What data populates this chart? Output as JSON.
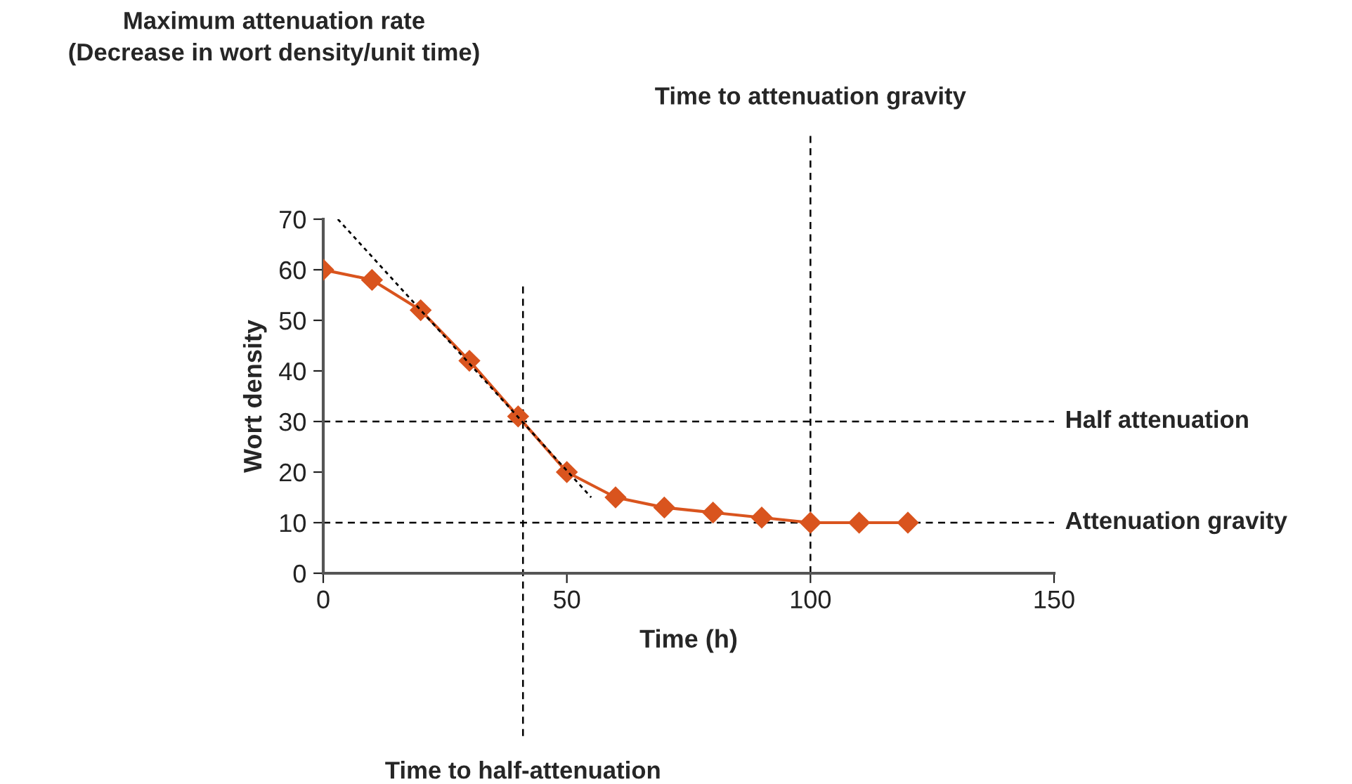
{
  "chart_data": {
    "type": "line",
    "xlabel": "Time (h)",
    "ylabel": "Wort density",
    "x": [
      0,
      10,
      20,
      30,
      40,
      50,
      60,
      70,
      80,
      90,
      100,
      110,
      120
    ],
    "series": [
      {
        "color": "#d9541e",
        "marker": "diamond",
        "line_style": "solid",
        "values": [
          60,
          58,
          52,
          42,
          31,
          20,
          15,
          13,
          12,
          11,
          10,
          10,
          10
        ]
      },
      {
        "color": "#000000",
        "marker": "none",
        "line_style": "dotted",
        "x": [
          3,
          55
        ],
        "values": [
          70,
          15
        ]
      }
    ],
    "xlim": [
      0,
      150
    ],
    "xticks": [
      0,
      50,
      100,
      150
    ],
    "ylim": [
      0,
      70
    ],
    "yticks": [
      0,
      10,
      20,
      30,
      40,
      50,
      60,
      70
    ],
    "grid": false,
    "ref_lines": [
      {
        "axis": "y",
        "value": 30,
        "label": "Half attenuation",
        "color": "#000000",
        "line_style": "dashed"
      },
      {
        "axis": "y",
        "value": 10,
        "label": "Attenuation gravity",
        "color": "#000000",
        "line_style": "dashed"
      },
      {
        "axis": "x",
        "value": 41,
        "label": "Time to half-attenuation",
        "color": "#000000",
        "line_style": "dashed"
      },
      {
        "axis": "x",
        "value": 100,
        "label": "Time to attenuation gravity",
        "color": "#000000",
        "line_style": "dashed"
      }
    ],
    "annotations": [
      "Maximum attenuation rate\n(Decrease in wort density/unit time)"
    ]
  }
}
